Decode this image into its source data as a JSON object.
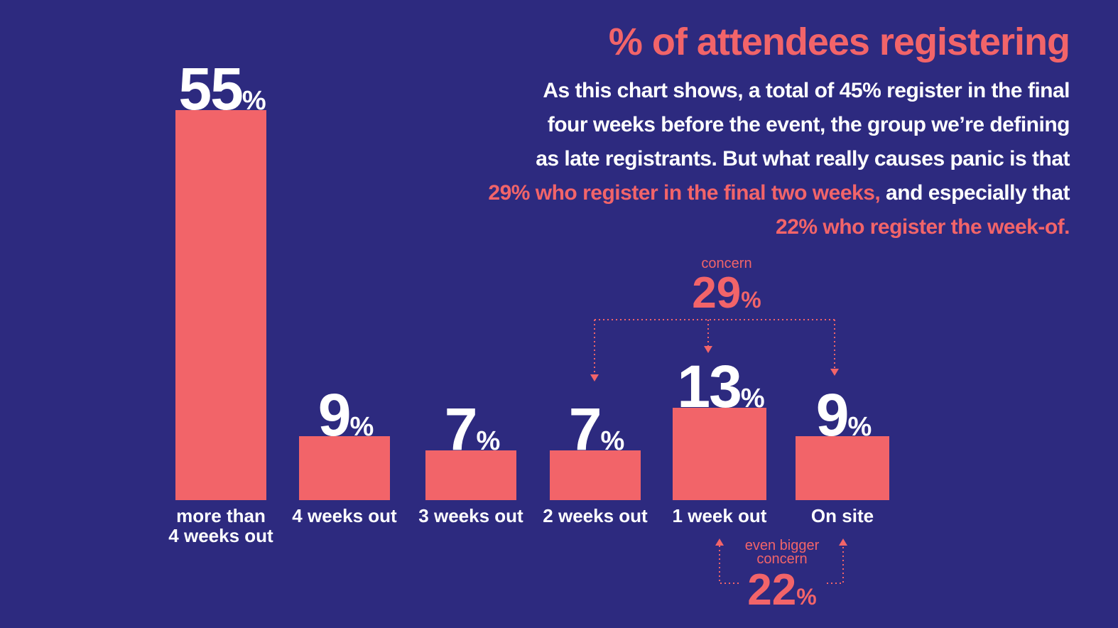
{
  "title": "% of  attendees registering",
  "description": {
    "line1": "As this chart shows, a total of 45% register in the final",
    "line2": "four weeks before the event, the group we’re defining",
    "line3": "as late registrants. But what really causes panic is that",
    "line4_highlight": "29% who register in the final two weeks,",
    "line4_rest": " and especially that",
    "line5_highlight": "22% who register the week-of."
  },
  "colors": {
    "background": "#2d2a7f",
    "accent": "#f26469",
    "text": "#ffffff"
  },
  "chart_data": {
    "type": "bar",
    "title": "% of  attendees registering",
    "categories": [
      "more than\n4 weeks out",
      "4 weeks out",
      "3 weeks out",
      "2 weeks out",
      "1 week out",
      "On site"
    ],
    "values": [
      55,
      9,
      7,
      7,
      13,
      9
    ],
    "value_labels": [
      "55",
      "9",
      "7",
      "7",
      "13",
      "9"
    ],
    "unit": "%",
    "ylim": [
      0,
      55
    ],
    "xlabel": "",
    "ylabel": "",
    "grid": false,
    "annotations": [
      {
        "label": "concern",
        "value": "29",
        "unit": "%",
        "spans": [
          "2 weeks out",
          "1 week out",
          "On site"
        ]
      },
      {
        "label": "even bigger\nconcern",
        "value": "22",
        "unit": "%",
        "spans": [
          "1 week out",
          "On site"
        ]
      }
    ]
  }
}
